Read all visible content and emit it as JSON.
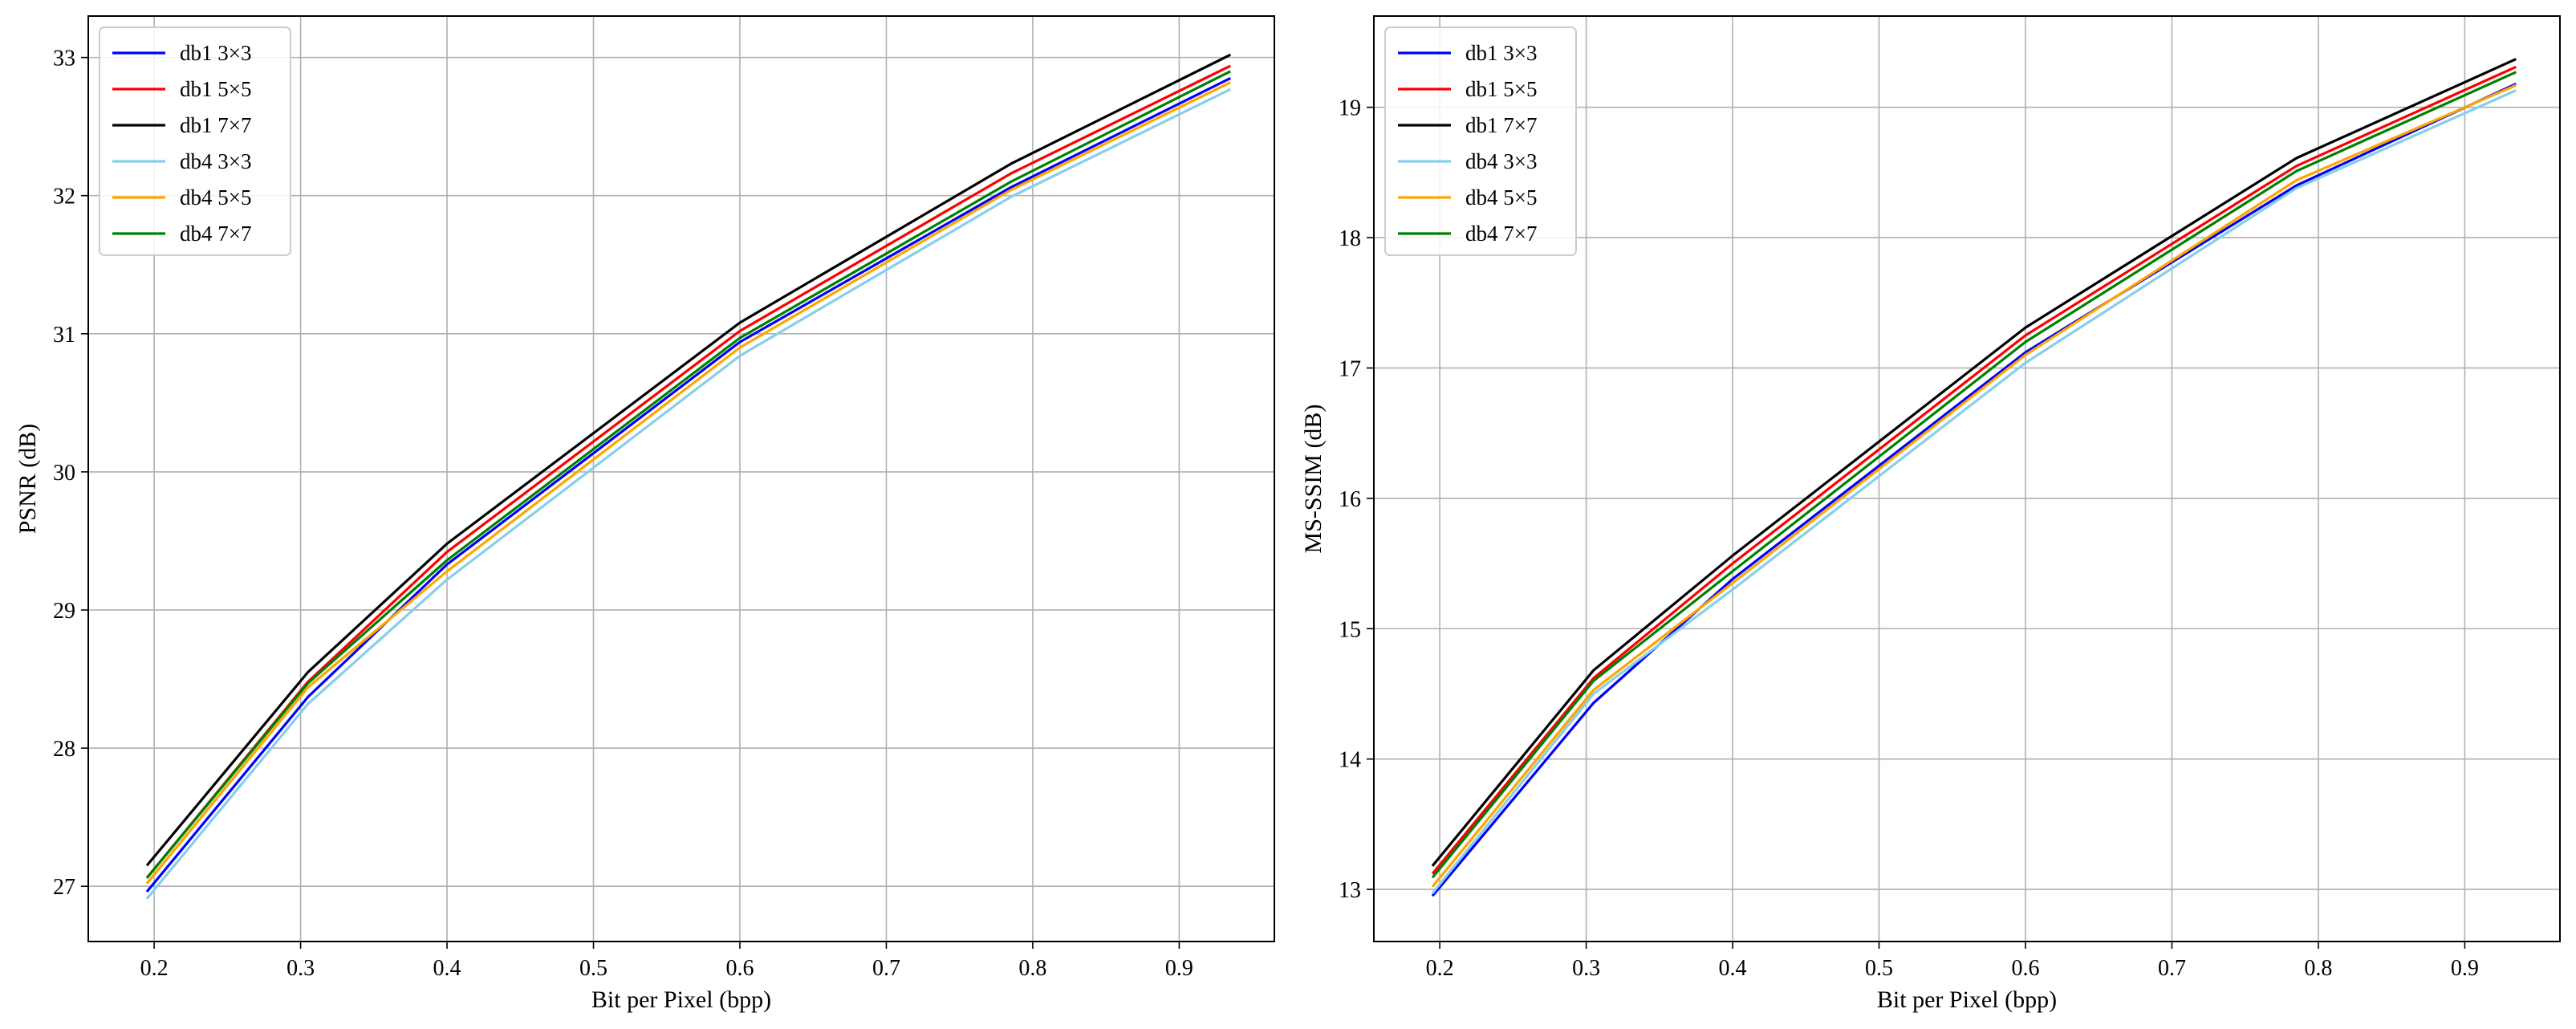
{
  "chart_data": [
    {
      "type": "line",
      "title": "",
      "xlabel": "Bit per Pixel (bpp)",
      "ylabel": "PSNR (dB)",
      "xlim": [
        0.155,
        0.965
      ],
      "ylim": [
        26.6,
        33.3
      ],
      "xticks": [
        "0.2",
        "0.3",
        "0.4",
        "0.5",
        "0.6",
        "0.7",
        "0.8",
        "0.9"
      ],
      "yticks": [
        "27",
        "28",
        "29",
        "30",
        "31",
        "32",
        "33"
      ],
      "grid": true,
      "legend_position": "top-left",
      "series": [
        {
          "name": "db1 3×3",
          "color": "#0000ff",
          "x": [
            0.195,
            0.305,
            0.4,
            0.6,
            0.785,
            0.935
          ],
          "y": [
            26.96,
            28.37,
            29.33,
            30.94,
            32.06,
            32.85
          ]
        },
        {
          "name": "db1 5×5",
          "color": "#ff0000",
          "x": [
            0.195,
            0.305,
            0.4,
            0.6,
            0.785,
            0.935
          ],
          "y": [
            27.06,
            28.48,
            29.42,
            31.02,
            32.16,
            32.94
          ]
        },
        {
          "name": "db1 7×7",
          "color": "#000000",
          "x": [
            0.195,
            0.305,
            0.4,
            0.6,
            0.785,
            0.935
          ],
          "y": [
            27.15,
            28.55,
            29.48,
            31.08,
            32.23,
            33.02
          ]
        },
        {
          "name": "db4 3×3",
          "color": "#87ceeb",
          "x": [
            0.195,
            0.305,
            0.4,
            0.6,
            0.785,
            0.935
          ],
          "y": [
            26.91,
            28.32,
            29.22,
            30.84,
            31.99,
            32.77
          ]
        },
        {
          "name": "db4 5×5",
          "color": "#ffa500",
          "x": [
            0.195,
            0.305,
            0.4,
            0.6,
            0.785,
            0.935
          ],
          "y": [
            27.02,
            28.44,
            29.28,
            30.9,
            32.04,
            32.82
          ]
        },
        {
          "name": "db4 7×7",
          "color": "#008000",
          "x": [
            0.195,
            0.305,
            0.4,
            0.6,
            0.785,
            0.935
          ],
          "y": [
            27.06,
            28.47,
            29.36,
            30.97,
            32.1,
            32.9
          ]
        }
      ]
    },
    {
      "type": "line",
      "title": "",
      "xlabel": "Bit per Pixel (bpp)",
      "ylabel": "MS-SSIM (dB)",
      "xlim": [
        0.155,
        0.965
      ],
      "ylim": [
        12.6,
        19.7
      ],
      "xticks": [
        "0.2",
        "0.3",
        "0.4",
        "0.5",
        "0.6",
        "0.7",
        "0.8",
        "0.9"
      ],
      "yticks": [
        "13",
        "14",
        "15",
        "16",
        "17",
        "18",
        "19"
      ],
      "grid": true,
      "legend_position": "top-left",
      "series": [
        {
          "name": "db1 3×3",
          "color": "#0000ff",
          "x": [
            0.195,
            0.305,
            0.4,
            0.6,
            0.785,
            0.935
          ],
          "y": [
            12.95,
            14.43,
            15.38,
            17.12,
            18.4,
            19.18
          ]
        },
        {
          "name": "db1 5×5",
          "color": "#ff0000",
          "x": [
            0.195,
            0.305,
            0.4,
            0.6,
            0.785,
            0.935
          ],
          "y": [
            13.12,
            14.62,
            15.5,
            17.25,
            18.55,
            19.31
          ]
        },
        {
          "name": "db1 7×7",
          "color": "#000000",
          "x": [
            0.195,
            0.305,
            0.4,
            0.6,
            0.785,
            0.935
          ],
          "y": [
            13.18,
            14.68,
            15.56,
            17.31,
            18.61,
            19.37
          ]
        },
        {
          "name": "db4 3×3",
          "color": "#87ceeb",
          "x": [
            0.195,
            0.305,
            0.4,
            0.6,
            0.785,
            0.935
          ],
          "y": [
            12.97,
            14.5,
            15.3,
            17.04,
            18.38,
            19.13
          ]
        },
        {
          "name": "db4 5×5",
          "color": "#ffa500",
          "x": [
            0.195,
            0.305,
            0.4,
            0.6,
            0.785,
            0.935
          ],
          "y": [
            13.02,
            14.53,
            15.35,
            17.1,
            18.44,
            19.17
          ]
        },
        {
          "name": "db4 7×7",
          "color": "#008000",
          "x": [
            0.195,
            0.305,
            0.4,
            0.6,
            0.785,
            0.935
          ],
          "y": [
            13.09,
            14.6,
            15.44,
            17.2,
            18.51,
            19.27
          ]
        }
      ]
    }
  ]
}
